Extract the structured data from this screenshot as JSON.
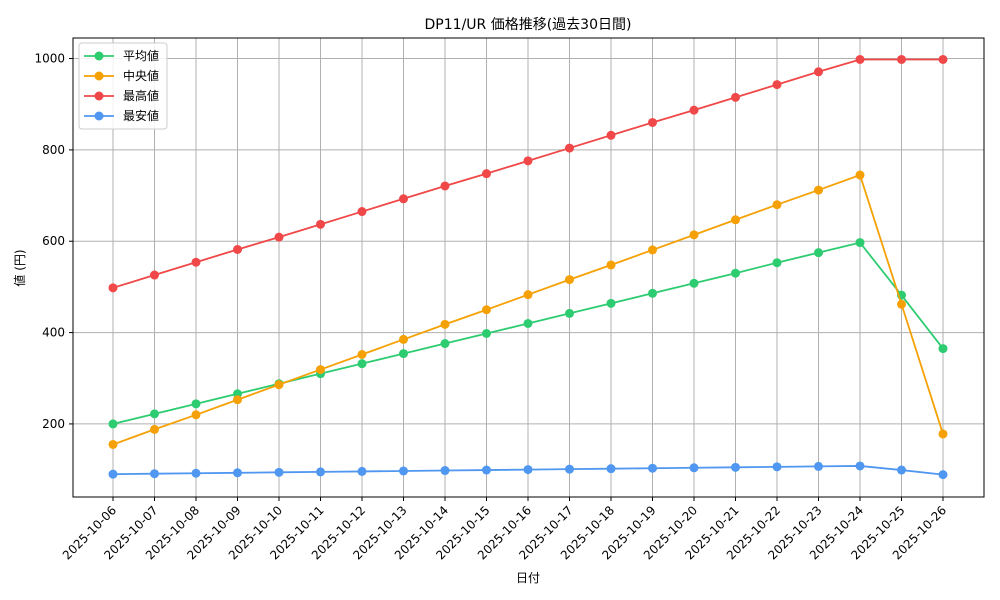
{
  "chart_data": {
    "type": "line",
    "title": "DP11/UR 価格推移(過去30日間)",
    "xlabel": "日付",
    "ylabel": "値 (円)",
    "ylim": [
      40,
      1045
    ],
    "yticks": [
      200,
      400,
      600,
      800,
      1000
    ],
    "grid": true,
    "legend_position": "top-left",
    "categories": [
      "2025-10-06",
      "2025-10-07",
      "2025-10-08",
      "2025-10-09",
      "2025-10-10",
      "2025-10-11",
      "2025-10-12",
      "2025-10-13",
      "2025-10-14",
      "2025-10-15",
      "2025-10-16",
      "2025-10-17",
      "2025-10-18",
      "2025-10-19",
      "2025-10-20",
      "2025-10-21",
      "2025-10-22",
      "2025-10-23",
      "2025-10-24",
      "2025-10-25",
      "2025-10-26"
    ],
    "series": [
      {
        "name": "平均値",
        "color": "#2ecc71",
        "values": [
          200,
          222,
          244,
          266,
          288,
          310,
          332,
          354,
          376,
          398,
          420,
          442,
          464,
          486,
          508,
          530,
          553,
          575,
          597,
          482,
          365
        ]
      },
      {
        "name": "中央値",
        "color": "#f5a105",
        "values": [
          155,
          188,
          220,
          253,
          286,
          319,
          352,
          385,
          418,
          450,
          483,
          516,
          548,
          581,
          614,
          647,
          680,
          712,
          745,
          462,
          178
        ]
      },
      {
        "name": "最高値",
        "color": "#f04848",
        "values": [
          498,
          526,
          554,
          582,
          609,
          637,
          665,
          693,
          721,
          748,
          776,
          804,
          832,
          860,
          887,
          915,
          943,
          971,
          998,
          998,
          998
        ]
      },
      {
        "name": "最安値",
        "color": "#4f97f0",
        "values": [
          90,
          91,
          92,
          93,
          94,
          95,
          96,
          97,
          98,
          99,
          100,
          101,
          102,
          103,
          104,
          105,
          106,
          107,
          108,
          99,
          89
        ]
      }
    ]
  }
}
